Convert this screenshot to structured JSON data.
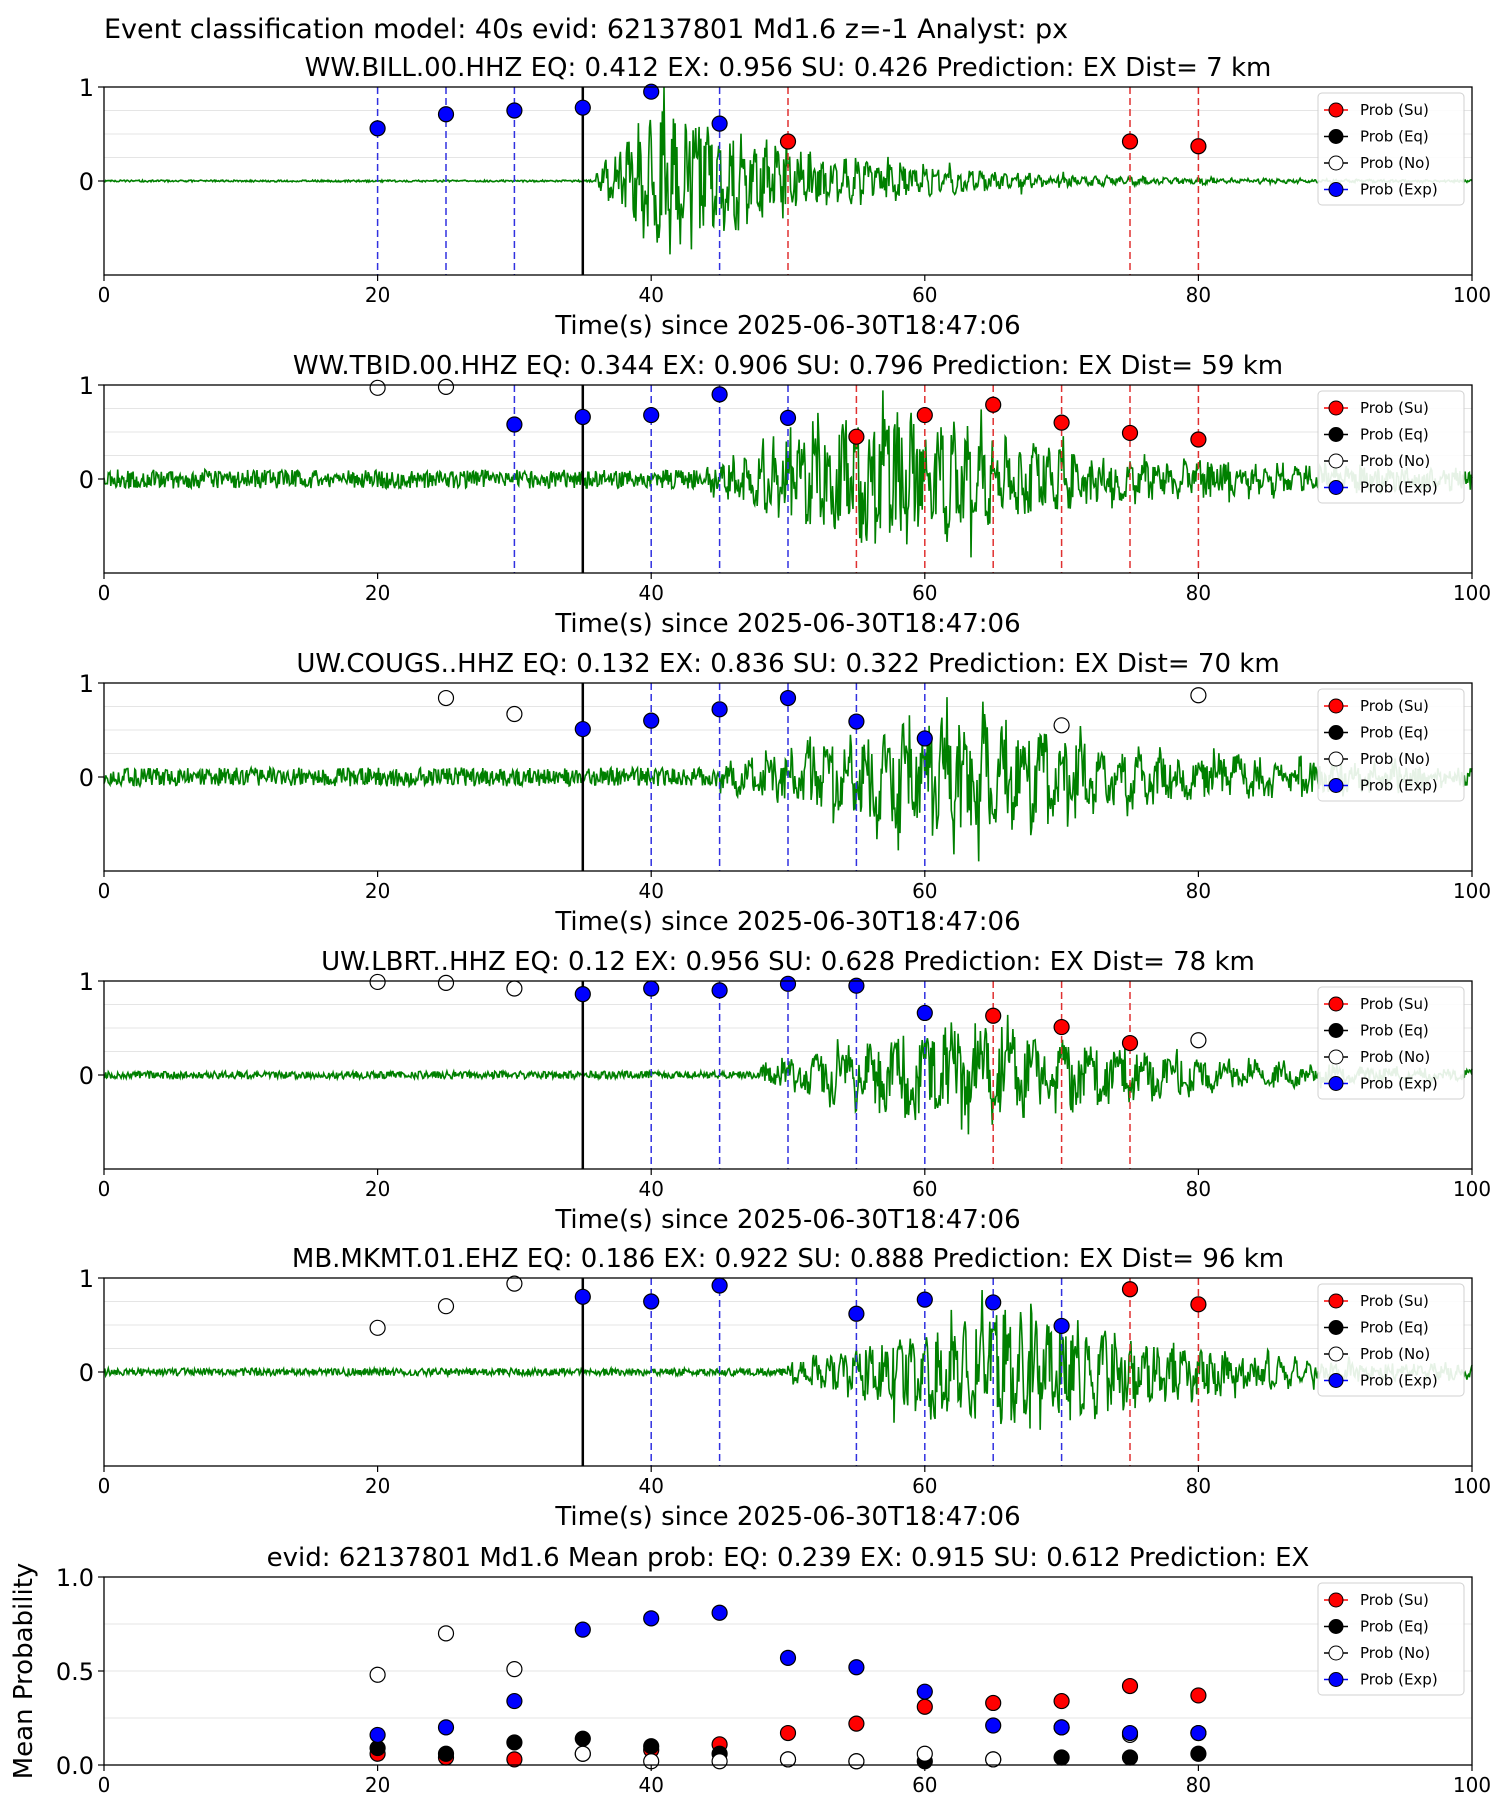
{
  "suptitle": "Event classification model: 40s evid: 62137801 Md1.6 z=-1 Analyst: px",
  "legend_entries": [
    "Prob (Su)",
    "Prob (Eq)",
    "Prob (No)",
    "Prob (Exp)"
  ],
  "colors": {
    "waveform": "#008000",
    "su": "#ff0000",
    "eq": "#000000",
    "no": "#ffffff",
    "exp": "#0000ff",
    "su_line": "#e03030",
    "exp_line": "#3030e0"
  },
  "chart_data": [
    {
      "type": "scatter",
      "title": "WW.BILL.00.HHZ   EQ: 0.412  EX: 0.956  SU: 0.426   Prediction: EX    Dist= 7 km",
      "xlabel": "Time(s) since 2025-06-30T18:47:06",
      "xlim": [
        0,
        100
      ],
      "ylim": [
        -1,
        1
      ],
      "xticks": [
        "0",
        "20",
        "40",
        "60",
        "80",
        "100"
      ],
      "yticks": [
        "0",
        "1"
      ],
      "pick_time": 35,
      "waveform": {
        "onset": 36,
        "peak": 41,
        "amp": 1.0,
        "decay": 12,
        "noise": 0.01,
        "seed": 11,
        "freq": 1.2
      },
      "exp_lines": [
        20,
        25,
        30,
        45
      ],
      "su_lines": [
        50,
        75,
        80
      ],
      "series": [
        {
          "name": "Prob (Exp)",
          "x": [
            20,
            25,
            30,
            35,
            40,
            45
          ],
          "y": [
            0.56,
            0.71,
            0.75,
            0.78,
            0.95,
            0.61
          ]
        },
        {
          "name": "Prob (Su)",
          "x": [
            50,
            75,
            80
          ],
          "y": [
            0.42,
            0.42,
            0.37
          ]
        }
      ]
    },
    {
      "type": "scatter",
      "title": "WW.TBID.00.HHZ   EQ: 0.344  EX: 0.906  SU: 0.796   Prediction: EX    Dist= 59 km",
      "xlabel": "Time(s) since 2025-06-30T18:47:06",
      "xlim": [
        0,
        100
      ],
      "ylim": [
        -1,
        1
      ],
      "xticks": [
        "0",
        "20",
        "40",
        "60",
        "80",
        "100"
      ],
      "yticks": [
        "0",
        "1"
      ],
      "pick_time": 35,
      "waveform": {
        "onset": 44,
        "peak": 58,
        "amp": 1.0,
        "decay": 14,
        "noise": 0.1,
        "seed": 23,
        "freq": 1.0
      },
      "exp_lines": [
        30,
        40,
        45,
        50
      ],
      "su_lines": [
        55,
        60,
        65,
        70,
        75,
        80
      ],
      "series": [
        {
          "name": "Prob (No)",
          "x": [
            20,
            25
          ],
          "y": [
            0.97,
            0.98
          ]
        },
        {
          "name": "Prob (Exp)",
          "x": [
            30,
            35,
            40,
            45,
            50
          ],
          "y": [
            0.58,
            0.66,
            0.68,
            0.9,
            0.65
          ]
        },
        {
          "name": "Prob (Su)",
          "x": [
            55,
            60,
            65,
            70,
            75,
            80
          ],
          "y": [
            0.45,
            0.68,
            0.79,
            0.6,
            0.49,
            0.42
          ]
        }
      ]
    },
    {
      "type": "scatter",
      "title": "UW.COUGS..HHZ   EQ: 0.132  EX: 0.836  SU: 0.322   Prediction: EX    Dist= 70 km",
      "xlabel": "Time(s) since 2025-06-30T18:47:06",
      "xlim": [
        0,
        100
      ],
      "ylim": [
        -1,
        1
      ],
      "xticks": [
        "0",
        "20",
        "40",
        "60",
        "80",
        "100"
      ],
      "yticks": [
        "0",
        "1"
      ],
      "pick_time": 35,
      "waveform": {
        "onset": 45,
        "peak": 63,
        "amp": 0.9,
        "decay": 16,
        "noise": 0.1,
        "seed": 37,
        "freq": 0.7
      },
      "exp_lines": [
        40,
        45,
        50,
        55,
        60
      ],
      "su_lines": [],
      "series": [
        {
          "name": "Prob (No)",
          "x": [
            25,
            30,
            70,
            80
          ],
          "y": [
            0.84,
            0.67,
            0.55,
            0.87
          ]
        },
        {
          "name": "Prob (Exp)",
          "x": [
            35,
            40,
            45,
            50,
            55,
            60
          ],
          "y": [
            0.51,
            0.6,
            0.72,
            0.84,
            0.59,
            0.41
          ]
        }
      ]
    },
    {
      "type": "scatter",
      "title": "UW.LBRT..HHZ   EQ: 0.12  EX: 0.956  SU: 0.628   Prediction: EX    Dist= 78 km",
      "xlabel": "Time(s) since 2025-06-30T18:47:06",
      "xlim": [
        0,
        100
      ],
      "ylim": [
        -1,
        1
      ],
      "xticks": [
        "0",
        "20",
        "40",
        "60",
        "80",
        "100"
      ],
      "yticks": [
        "0",
        "1"
      ],
      "pick_time": 35,
      "waveform": {
        "onset": 48,
        "peak": 63,
        "amp": 0.8,
        "decay": 14,
        "noise": 0.04,
        "seed": 53,
        "freq": 0.5
      },
      "exp_lines": [
        40,
        45,
        50,
        55,
        60
      ],
      "su_lines": [
        65,
        70,
        75
      ],
      "series": [
        {
          "name": "Prob (No)",
          "x": [
            20,
            25,
            30,
            80
          ],
          "y": [
            0.99,
            0.98,
            0.92,
            0.37
          ]
        },
        {
          "name": "Prob (Exp)",
          "x": [
            35,
            40,
            45,
            50,
            55,
            60
          ],
          "y": [
            0.86,
            0.92,
            0.9,
            0.97,
            0.95,
            0.66
          ]
        },
        {
          "name": "Prob (Su)",
          "x": [
            65,
            70,
            75
          ],
          "y": [
            0.63,
            0.51,
            0.34
          ]
        }
      ]
    },
    {
      "type": "scatter",
      "title": "MB.MKMT.01.EHZ   EQ: 0.186  EX: 0.922  SU: 0.888   Prediction: EX    Dist= 96 km",
      "xlabel": "Time(s) since 2025-06-30T18:47:06",
      "xlim": [
        0,
        100
      ],
      "ylim": [
        -1,
        1
      ],
      "xticks": [
        "0",
        "20",
        "40",
        "60",
        "80",
        "100"
      ],
      "yticks": [
        "0",
        "1"
      ],
      "pick_time": 35,
      "waveform": {
        "onset": 50,
        "peak": 68,
        "amp": 0.9,
        "decay": 12,
        "noise": 0.04,
        "seed": 71,
        "freq": 1.0
      },
      "exp_lines": [
        40,
        45,
        55,
        60,
        65,
        70
      ],
      "su_lines": [
        75,
        80
      ],
      "series": [
        {
          "name": "Prob (No)",
          "x": [
            20,
            25,
            30
          ],
          "y": [
            0.47,
            0.7,
            0.94
          ]
        },
        {
          "name": "Prob (Exp)",
          "x": [
            35,
            40,
            45,
            55,
            60,
            65,
            70
          ],
          "y": [
            0.8,
            0.75,
            0.92,
            0.62,
            0.77,
            0.74,
            0.49
          ]
        },
        {
          "name": "Prob (Su)",
          "x": [
            75,
            80
          ],
          "y": [
            0.88,
            0.72
          ]
        }
      ]
    },
    {
      "type": "scatter",
      "title": "evid: 62137801  Md1.6   Mean prob:   EQ: 0.239  EX: 0.915  SU: 0.612   Prediction: EX",
      "ylabel": "Mean Probability",
      "xlim": [
        0,
        100
      ],
      "ylim": [
        0,
        1
      ],
      "xticks": [
        "0",
        "20",
        "40",
        "60",
        "80",
        "100"
      ],
      "yticks": [
        "0.0",
        "0.5",
        "1.0"
      ],
      "series": [
        {
          "name": "Prob (Su)",
          "x": [
            20,
            25,
            30,
            35,
            40,
            45,
            50,
            55,
            60,
            65,
            70,
            75,
            80
          ],
          "y": [
            0.06,
            0.04,
            0.03,
            0.06,
            0.08,
            0.11,
            0.17,
            0.22,
            0.31,
            0.33,
            0.34,
            0.42,
            0.37
          ]
        },
        {
          "name": "Prob (Eq)",
          "x": [
            20,
            25,
            30,
            35,
            40,
            45,
            50,
            55,
            60,
            65,
            70,
            75,
            80
          ],
          "y": [
            0.09,
            0.06,
            0.12,
            0.14,
            0.1,
            0.06,
            0.03,
            0.02,
            0.02,
            0.03,
            0.04,
            0.04,
            0.06
          ]
        },
        {
          "name": "Prob (No)",
          "x": [
            20,
            25,
            30,
            35,
            40,
            45,
            50,
            55,
            60,
            65,
            70,
            75,
            80
          ],
          "y": [
            0.48,
            0.7,
            0.51,
            0.06,
            0.02,
            0.02,
            0.03,
            0.02,
            0.06,
            0.03,
            0.2,
            0.16,
            0.17
          ]
        },
        {
          "name": "Prob (Exp)",
          "x": [
            20,
            25,
            30,
            35,
            40,
            45,
            50,
            55,
            60,
            65,
            70,
            75,
            80
          ],
          "y": [
            0.16,
            0.2,
            0.34,
            0.72,
            0.78,
            0.81,
            0.57,
            0.52,
            0.39,
            0.21,
            0.2,
            0.17,
            0.17
          ]
        }
      ]
    }
  ]
}
